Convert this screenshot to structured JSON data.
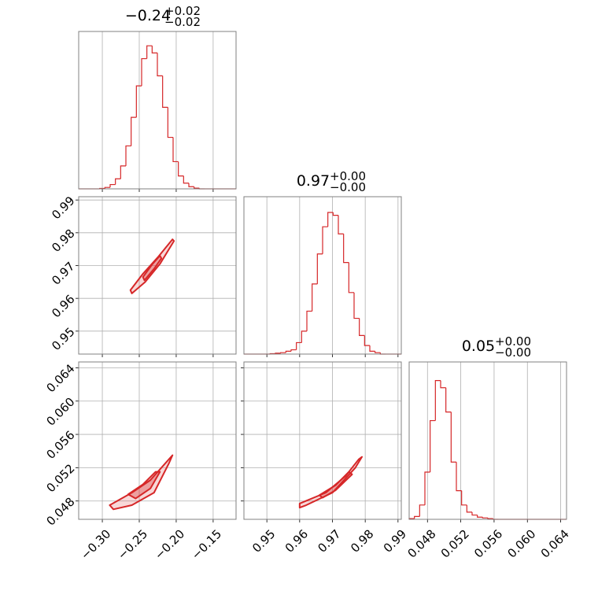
{
  "chart_data": [
    {
      "type": "histogram",
      "title": "−0.24",
      "title_plus": "+0.02",
      "title_minus": "−0.02",
      "color": "#d62728",
      "grid": true,
      "xlim": [
        -0.332,
        -0.119
      ],
      "ylim": [
        0,
        110
      ],
      "xticks": [
        -0.3,
        -0.25,
        -0.2,
        -0.15
      ],
      "xtick_labels": false,
      "bins": [
        -0.332,
        -0.3249,
        -0.3178,
        -0.3107,
        -0.3036,
        -0.2965,
        -0.2894,
        -0.2823,
        -0.2752,
        -0.2681,
        -0.261,
        -0.2539,
        -0.2468,
        -0.2397,
        -0.2326,
        -0.2255,
        -0.2184,
        -0.2113,
        -0.2042,
        -0.1971,
        -0.19,
        -0.1829,
        -0.1758,
        -0.1687,
        -0.1616,
        -0.1545,
        -0.1474,
        -0.1403,
        -0.1332,
        -0.1261,
        -0.119
      ],
      "values": [
        0,
        0,
        0,
        0,
        0.3,
        1,
        3,
        7,
        16,
        30,
        50,
        72,
        91,
        100,
        95,
        79,
        57,
        36,
        19,
        9,
        4,
        1.5,
        0.5,
        0,
        0,
        0,
        0,
        0,
        0,
        0
      ]
    },
    {
      "type": "contour",
      "color": "#d62728",
      "grid": true,
      "xlim": [
        -0.332,
        -0.119
      ],
      "ylim": [
        0.943,
        0.991
      ],
      "xticks": [
        -0.3,
        -0.25,
        -0.2,
        -0.15
      ],
      "xtick_labels": false,
      "yticks": [
        0.95,
        0.96,
        0.97,
        0.98,
        0.99
      ],
      "ytick_labels": true,
      "contours": [
        {
          "x": [
            -0.262,
            -0.245,
            -0.225,
            -0.205,
            -0.203,
            -0.222,
            -0.242,
            -0.26
          ],
          "y": [
            0.9625,
            0.9675,
            0.9725,
            0.978,
            0.9775,
            0.9705,
            0.965,
            0.9615
          ]
        },
        {
          "x": [
            -0.245,
            -0.232,
            -0.222,
            -0.22,
            -0.23,
            -0.243
          ],
          "y": [
            0.9665,
            0.9705,
            0.973,
            0.9722,
            0.969,
            0.9655
          ]
        }
      ]
    },
    {
      "type": "histogram",
      "title": "0.97",
      "title_plus": "+0.00",
      "title_minus": "−0.00",
      "color": "#d62728",
      "grid": true,
      "xlim": [
        0.943,
        0.991
      ],
      "ylim": [
        0,
        110
      ],
      "xticks": [
        0.95,
        0.96,
        0.97,
        0.98,
        0.99
      ],
      "xtick_labels": false,
      "bins": [
        0.943,
        0.9446,
        0.9462,
        0.9478,
        0.9494,
        0.951,
        0.9526,
        0.9542,
        0.9558,
        0.9574,
        0.959,
        0.9606,
        0.9622,
        0.9638,
        0.9654,
        0.967,
        0.9686,
        0.9702,
        0.9718,
        0.9734,
        0.975,
        0.9766,
        0.9782,
        0.9798,
        0.9814,
        0.983,
        0.9846,
        0.9862,
        0.9878,
        0.9894,
        0.991
      ],
      "values": [
        0,
        0,
        0,
        0,
        0,
        0.3,
        0.6,
        1,
        2,
        3,
        8,
        16,
        30,
        49,
        70,
        89,
        99,
        97,
        84,
        64,
        43,
        25,
        13,
        6,
        2,
        1,
        0,
        0,
        0,
        0
      ]
    },
    {
      "type": "contour",
      "color": "#d62728",
      "grid": true,
      "xlim": [
        -0.332,
        -0.119
      ],
      "ylim": [
        0.0458,
        0.0647
      ],
      "xticks": [
        {
          "value": -0.3,
          "label": "−0.30"
        },
        {
          "value": -0.25,
          "label": "−0.25"
        },
        {
          "value": -0.2,
          "label": "−0.20"
        },
        {
          "value": -0.15,
          "label": "−0.15"
        }
      ],
      "xtick_labels": true,
      "yticks": [
        0.048,
        0.052,
        0.056,
        {
          "value": 0.06,
          "label": "0.060"
        },
        0.064
      ],
      "ytick_labels": true,
      "contours": [
        {
          "x": [
            -0.29,
            -0.26,
            -0.235,
            -0.215,
            -0.205,
            -0.21,
            -0.23,
            -0.26,
            -0.285
          ],
          "y": [
            0.0475,
            0.049,
            0.0505,
            0.0525,
            0.0535,
            0.0525,
            0.049,
            0.0475,
            0.047
          ]
        },
        {
          "x": [
            -0.265,
            -0.245,
            -0.228,
            -0.222,
            -0.235,
            -0.255
          ],
          "y": [
            0.0488,
            0.05,
            0.0515,
            0.0515,
            0.0495,
            0.0483
          ]
        }
      ]
    },
    {
      "type": "contour",
      "color": "#d62728",
      "grid": true,
      "xlim": [
        0.943,
        0.991
      ],
      "ylim": [
        0.0458,
        0.0647
      ],
      "xticks": [
        0.95,
        0.96,
        0.97,
        0.98,
        0.99
      ],
      "xtick_labels": true,
      "yticks": [
        0.048,
        0.052,
        0.056,
        0.06,
        0.064
      ],
      "ytick_labels": false,
      "contours": [
        {
          "x": [
            0.96,
            0.968,
            0.974,
            0.978,
            0.979,
            0.977,
            0.97,
            0.962,
            0.96
          ],
          "y": [
            0.0477,
            0.049,
            0.051,
            0.053,
            0.0533,
            0.052,
            0.049,
            0.0475,
            0.0472
          ]
        },
        {
          "x": [
            0.966,
            0.971,
            0.975,
            0.976,
            0.971,
            0.967
          ],
          "y": [
            0.0487,
            0.0499,
            0.0515,
            0.0512,
            0.0493,
            0.0484
          ]
        }
      ]
    },
    {
      "type": "histogram",
      "title": "0.05",
      "title_plus": "+0.00",
      "title_minus": "−0.00",
      "color": "#d62728",
      "grid": true,
      "xlim": [
        0.0458,
        0.0647
      ],
      "ylim": [
        0,
        110
      ],
      "xticks": [
        0.048,
        0.052,
        0.056,
        {
          "value": 0.06,
          "label": "0.060"
        },
        0.064
      ],
      "xtick_labels": true,
      "bins": [
        0.0458,
        0.04643,
        0.04706,
        0.04769,
        0.04832,
        0.04895,
        0.04958,
        0.05021,
        0.05084,
        0.05147,
        0.0521,
        0.05273,
        0.05336,
        0.05399,
        0.05462,
        0.05525,
        0.05588,
        0.05651,
        0.05714,
        0.05777,
        0.0584,
        0.05903,
        0.05966,
        0.06029,
        0.06092,
        0.06155,
        0.06218,
        0.06281,
        0.06344,
        0.06407,
        0.0647
      ],
      "values": [
        0.5,
        2,
        10,
        33,
        69,
        97,
        92,
        75,
        40,
        20,
        10,
        5,
        3,
        1.5,
        1,
        0.5,
        0,
        0,
        0,
        0,
        0,
        0,
        0,
        0,
        0,
        0,
        0,
        0,
        0,
        0
      ]
    }
  ]
}
